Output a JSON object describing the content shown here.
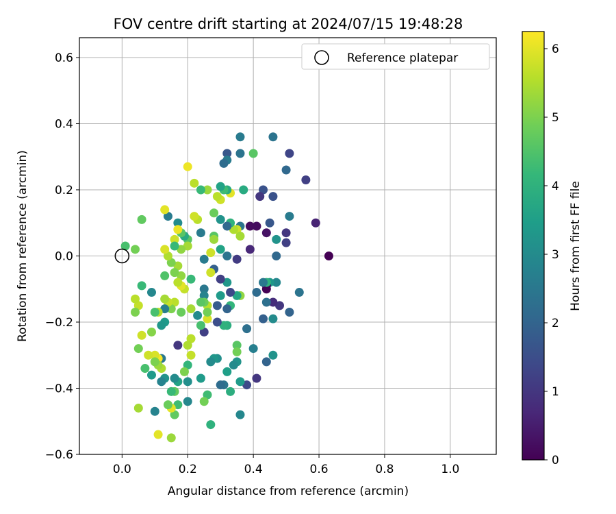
{
  "chart_data": {
    "type": "scatter",
    "title": "FOV centre drift starting at 2024/07/15 19:48:28",
    "xlabel": "Angular distance from reference (arcmin)",
    "ylabel": "Rotation from reference (arcmin)",
    "xlim": [
      -0.13,
      1.14
    ],
    "ylim": [
      -0.6,
      0.66
    ],
    "xticks": [
      0.0,
      0.2,
      0.4,
      0.6,
      0.8,
      1.0
    ],
    "xtick_labels": [
      "0.0",
      "0.2",
      "0.4",
      "0.6",
      "0.8",
      "1.0"
    ],
    "yticks": [
      -0.6,
      -0.4,
      -0.2,
      0.0,
      0.2,
      0.4,
      0.6
    ],
    "ytick_labels": [
      "−0.6",
      "−0.4",
      "−0.2",
      "0.0",
      "0.2",
      "0.4",
      "0.6"
    ],
    "grid": true,
    "legend": {
      "placement": "top-right",
      "label": "Reference platepar"
    },
    "reference_point": {
      "x": 0.0,
      "y": 0.0
    },
    "colorbar": {
      "label": "Hours from first FF file",
      "colormap": "viridis",
      "range": [
        0,
        6.25
      ],
      "ticks": [
        0,
        1,
        2,
        3,
        4,
        5,
        6
      ],
      "tick_labels": [
        "0",
        "1",
        "2",
        "3",
        "4",
        "5",
        "6"
      ]
    },
    "color_stops": [
      "#440154",
      "#482878",
      "#3e4989",
      "#31688e",
      "#26828e",
      "#1f9e89",
      "#35b779",
      "#6ece58",
      "#b5de2b",
      "#fde725"
    ],
    "points": [
      [
        0.63,
        0.0,
        0.0
      ],
      [
        0.59,
        0.1,
        0.6
      ],
      [
        0.56,
        0.23,
        1.2
      ],
      [
        0.54,
        -0.11,
        2.4
      ],
      [
        0.51,
        0.31,
        1.3
      ],
      [
        0.51,
        0.12,
        2.6
      ],
      [
        0.51,
        -0.17,
        2.0
      ],
      [
        0.5,
        0.07,
        1.0
      ],
      [
        0.5,
        0.04,
        1.2
      ],
      [
        0.5,
        0.26,
        2.1
      ],
      [
        0.48,
        -0.15,
        1.0
      ],
      [
        0.47,
        0.0,
        2.1
      ],
      [
        0.47,
        0.05,
        3.2
      ],
      [
        0.47,
        -0.08,
        2.9
      ],
      [
        0.46,
        0.36,
        2.4
      ],
      [
        0.46,
        0.18,
        1.6
      ],
      [
        0.46,
        -0.19,
        3.0
      ],
      [
        0.46,
        -0.3,
        3.2
      ],
      [
        0.46,
        -0.14,
        0.8
      ],
      [
        0.45,
        0.1,
        1.7
      ],
      [
        0.45,
        -0.08,
        3.3
      ],
      [
        0.44,
        -0.09,
        0.0
      ],
      [
        0.44,
        -0.1,
        0.0
      ],
      [
        0.44,
        -0.08,
        4.0
      ],
      [
        0.44,
        -0.14,
        2.3
      ],
      [
        0.44,
        0.07,
        0.3
      ],
      [
        0.44,
        -0.32,
        2.0
      ],
      [
        0.43,
        0.2,
        1.6
      ],
      [
        0.43,
        -0.08,
        2.5
      ],
      [
        0.43,
        -0.19,
        1.9
      ],
      [
        0.42,
        0.18,
        1.0
      ],
      [
        0.41,
        0.09,
        0.2
      ],
      [
        0.41,
        -0.11,
        2.2
      ],
      [
        0.41,
        -0.37,
        1.0
      ],
      [
        0.4,
        0.31,
        4.6
      ],
      [
        0.4,
        -0.28,
        2.7
      ],
      [
        0.39,
        0.09,
        0.2
      ],
      [
        0.39,
        0.02,
        0.7
      ],
      [
        0.38,
        -0.22,
        2.3
      ],
      [
        0.38,
        -0.39,
        1.4
      ],
      [
        0.37,
        0.2,
        3.8
      ],
      [
        0.36,
        0.36,
        2.6
      ],
      [
        0.36,
        0.31,
        2.4
      ],
      [
        0.36,
        0.09,
        2.4
      ],
      [
        0.36,
        -0.38,
        3.4
      ],
      [
        0.36,
        -0.48,
        2.9
      ],
      [
        0.35,
        0.08,
        5.8
      ],
      [
        0.36,
        0.06,
        5.4
      ],
      [
        0.36,
        -0.12,
        5.2
      ],
      [
        0.35,
        -0.27,
        4.6
      ],
      [
        0.35,
        -0.29,
        4.9
      ],
      [
        0.35,
        -0.32,
        3.2
      ],
      [
        0.35,
        -0.01,
        1.1
      ],
      [
        0.35,
        -0.12,
        3.7
      ],
      [
        0.34,
        0.08,
        5.5
      ],
      [
        0.34,
        -0.33,
        3.0
      ],
      [
        0.33,
        0.19,
        6.0
      ],
      [
        0.33,
        0.1,
        4.0
      ],
      [
        0.33,
        -0.11,
        1.4
      ],
      [
        0.33,
        -0.15,
        4.1
      ],
      [
        0.33,
        -0.41,
        3.9
      ],
      [
        0.32,
        0.31,
        1.7
      ],
      [
        0.32,
        0.29,
        2.6
      ],
      [
        0.32,
        0.2,
        3.8
      ],
      [
        0.32,
        0.09,
        2.1
      ],
      [
        0.32,
        0.0,
        2.4
      ],
      [
        0.32,
        -0.08,
        3.3
      ],
      [
        0.32,
        -0.16,
        2.0
      ],
      [
        0.32,
        -0.21,
        3.9
      ],
      [
        0.32,
        -0.35,
        3.5
      ],
      [
        0.31,
        0.28,
        2.2
      ],
      [
        0.31,
        0.2,
        4.3
      ],
      [
        0.31,
        -0.21,
        4.0
      ],
      [
        0.31,
        -0.39,
        2.4
      ],
      [
        0.3,
        0.21,
        3.6
      ],
      [
        0.3,
        0.17,
        5.8
      ],
      [
        0.3,
        0.11,
        3.2
      ],
      [
        0.3,
        0.02,
        3.6
      ],
      [
        0.3,
        -0.07,
        1.2
      ],
      [
        0.3,
        -0.39,
        2.2
      ],
      [
        0.3,
        -0.12,
        3.4
      ],
      [
        0.29,
        0.18,
        5.6
      ],
      [
        0.29,
        -0.15,
        1.8
      ],
      [
        0.29,
        -0.2,
        1.5
      ],
      [
        0.29,
        -0.31,
        3.1
      ],
      [
        0.28,
        0.13,
        4.8
      ],
      [
        0.28,
        0.06,
        4.6
      ],
      [
        0.28,
        -0.04,
        1.9
      ],
      [
        0.28,
        -0.31,
        3.3
      ],
      [
        0.28,
        0.05,
        5.3
      ],
      [
        0.27,
        -0.05,
        5.8
      ],
      [
        0.27,
        0.01,
        5.8
      ],
      [
        0.27,
        -0.32,
        3.0
      ],
      [
        0.27,
        -0.51,
        4.0
      ],
      [
        0.26,
        0.2,
        5.3
      ],
      [
        0.26,
        -0.15,
        5.6
      ],
      [
        0.26,
        -0.19,
        5.9
      ],
      [
        0.26,
        -0.17,
        4.9
      ],
      [
        0.26,
        -0.42,
        4.3
      ],
      [
        0.25,
        -0.01,
        2.6
      ],
      [
        0.25,
        -0.1,
        2.5
      ],
      [
        0.25,
        -0.12,
        2.8
      ],
      [
        0.25,
        -0.23,
        1.2
      ],
      [
        0.25,
        -0.14,
        4.8
      ],
      [
        0.25,
        -0.44,
        4.9
      ],
      [
        0.24,
        0.2,
        4.2
      ],
      [
        0.24,
        0.07,
        2.6
      ],
      [
        0.24,
        -0.21,
        4.4
      ],
      [
        0.24,
        -0.14,
        4.6
      ],
      [
        0.24,
        -0.37,
        3.4
      ],
      [
        0.23,
        -0.18,
        3.0
      ],
      [
        0.23,
        0.11,
        5.6
      ],
      [
        0.22,
        0.12,
        5.8
      ],
      [
        0.22,
        0.22,
        5.6
      ],
      [
        0.21,
        -0.16,
        5.4
      ],
      [
        0.21,
        -0.25,
        5.6
      ],
      [
        0.21,
        -0.3,
        5.7
      ],
      [
        0.21,
        -0.07,
        4.2
      ],
      [
        0.2,
        0.05,
        4.6
      ],
      [
        0.2,
        0.03,
        5.4
      ],
      [
        0.2,
        0.27,
        6.1
      ],
      [
        0.2,
        -0.27,
        5.5
      ],
      [
        0.2,
        -0.33,
        4.1
      ],
      [
        0.2,
        -0.38,
        3.1
      ],
      [
        0.2,
        -0.44,
        2.9
      ],
      [
        0.19,
        0.06,
        3.8
      ],
      [
        0.19,
        -0.1,
        5.7
      ],
      [
        0.19,
        -0.35,
        5.0
      ],
      [
        0.18,
        0.07,
        4.6
      ],
      [
        0.18,
        0.02,
        5.2
      ],
      [
        0.18,
        -0.06,
        5.2
      ],
      [
        0.18,
        -0.09,
        6.0
      ],
      [
        0.18,
        -0.17,
        4.8
      ],
      [
        0.17,
        0.1,
        3.0
      ],
      [
        0.17,
        0.08,
        6.1
      ],
      [
        0.17,
        -0.03,
        5.4
      ],
      [
        0.17,
        -0.08,
        5.6
      ],
      [
        0.17,
        -0.27,
        1.0
      ],
      [
        0.17,
        -0.38,
        3.6
      ],
      [
        0.17,
        -0.45,
        4.3
      ],
      [
        0.16,
        0.05,
        5.8
      ],
      [
        0.16,
        0.03,
        4.2
      ],
      [
        0.16,
        -0.05,
        5.0
      ],
      [
        0.16,
        -0.14,
        5.6
      ],
      [
        0.16,
        -0.37,
        3.0
      ],
      [
        0.16,
        -0.48,
        4.7
      ],
      [
        0.16,
        -0.41,
        4.7
      ],
      [
        0.15,
        -0.02,
        5.0
      ],
      [
        0.15,
        -0.16,
        5.0
      ],
      [
        0.15,
        -0.41,
        4.2
      ],
      [
        0.15,
        -0.46,
        6.0
      ],
      [
        0.15,
        -0.55,
        5.3
      ],
      [
        0.14,
        0.12,
        2.6
      ],
      [
        0.14,
        0.0,
        5.5
      ],
      [
        0.14,
        -0.14,
        5.7
      ],
      [
        0.14,
        -0.45,
        4.8
      ],
      [
        0.13,
        0.14,
        6.0
      ],
      [
        0.13,
        0.02,
        5.9
      ],
      [
        0.13,
        -0.06,
        4.5
      ],
      [
        0.13,
        -0.13,
        5.4
      ],
      [
        0.13,
        -0.16,
        2.7
      ],
      [
        0.13,
        -0.2,
        3.4
      ],
      [
        0.13,
        -0.37,
        3.2
      ],
      [
        0.12,
        -0.21,
        3.3
      ],
      [
        0.12,
        -0.31,
        2.5
      ],
      [
        0.12,
        -0.38,
        2.8
      ],
      [
        0.12,
        -0.34,
        5.5
      ],
      [
        0.11,
        -0.17,
        5.6
      ],
      [
        0.11,
        -0.31,
        6.2
      ],
      [
        0.11,
        -0.33,
        5.3
      ],
      [
        0.11,
        -0.54,
        6.0
      ],
      [
        0.1,
        -0.3,
        5.9
      ],
      [
        0.1,
        -0.47,
        2.8
      ],
      [
        0.1,
        -0.32,
        5.0
      ],
      [
        0.1,
        -0.17,
        4.4
      ],
      [
        0.09,
        -0.11,
        2.9
      ],
      [
        0.09,
        -0.23,
        5.1
      ],
      [
        0.09,
        -0.36,
        3.4
      ],
      [
        0.08,
        -0.3,
        5.8
      ],
      [
        0.07,
        -0.34,
        4.4
      ],
      [
        0.06,
        -0.24,
        5.8
      ],
      [
        0.06,
        -0.09,
        4.2
      ],
      [
        0.05,
        -0.28,
        4.9
      ],
      [
        0.05,
        -0.46,
        5.4
      ],
      [
        0.05,
        -0.15,
        5.7
      ],
      [
        0.04,
        -0.13,
        5.6
      ],
      [
        0.04,
        -0.17,
        5.0
      ],
      [
        0.04,
        0.02,
        4.9
      ],
      [
        0.01,
        0.03,
        4.4
      ],
      [
        0.06,
        0.11,
        4.7
      ]
    ]
  }
}
